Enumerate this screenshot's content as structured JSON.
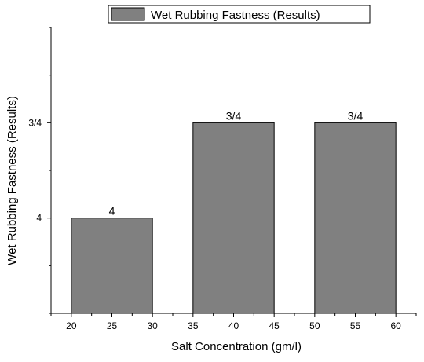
{
  "chart_data": {
    "type": "bar",
    "categories": [
      "20-30",
      "35-45",
      "50-60"
    ],
    "series": [
      {
        "name": "Wet Rubbing Fastness (Results)",
        "values": [
          4,
          3.5,
          3.5
        ],
        "labels": [
          "4",
          "3/4",
          "3/4"
        ]
      }
    ],
    "bar_ranges": [
      [
        20,
        30
      ],
      [
        35,
        45
      ],
      [
        50,
        60
      ]
    ],
    "xlabel": "Salt Concentration (gm/l)",
    "ylabel": "Wet Rubbing Fastness (Results)",
    "x_ticks": [
      "20",
      "25",
      "30",
      "35",
      "40",
      "45",
      "50",
      "55",
      "60"
    ],
    "xlim": [
      17.5,
      62.5
    ],
    "y_ticks": [
      {
        "value": 4,
        "label": "4"
      },
      {
        "value": 3.5,
        "label": "3/4"
      }
    ],
    "ylim": [
      4.5,
      3.0
    ],
    "y_axis": "reversed",
    "legend_position": "top",
    "grid": false,
    "colors": {
      "bar_fill": "#808080",
      "bar_stroke": "#000000",
      "axis": "#000000"
    }
  }
}
